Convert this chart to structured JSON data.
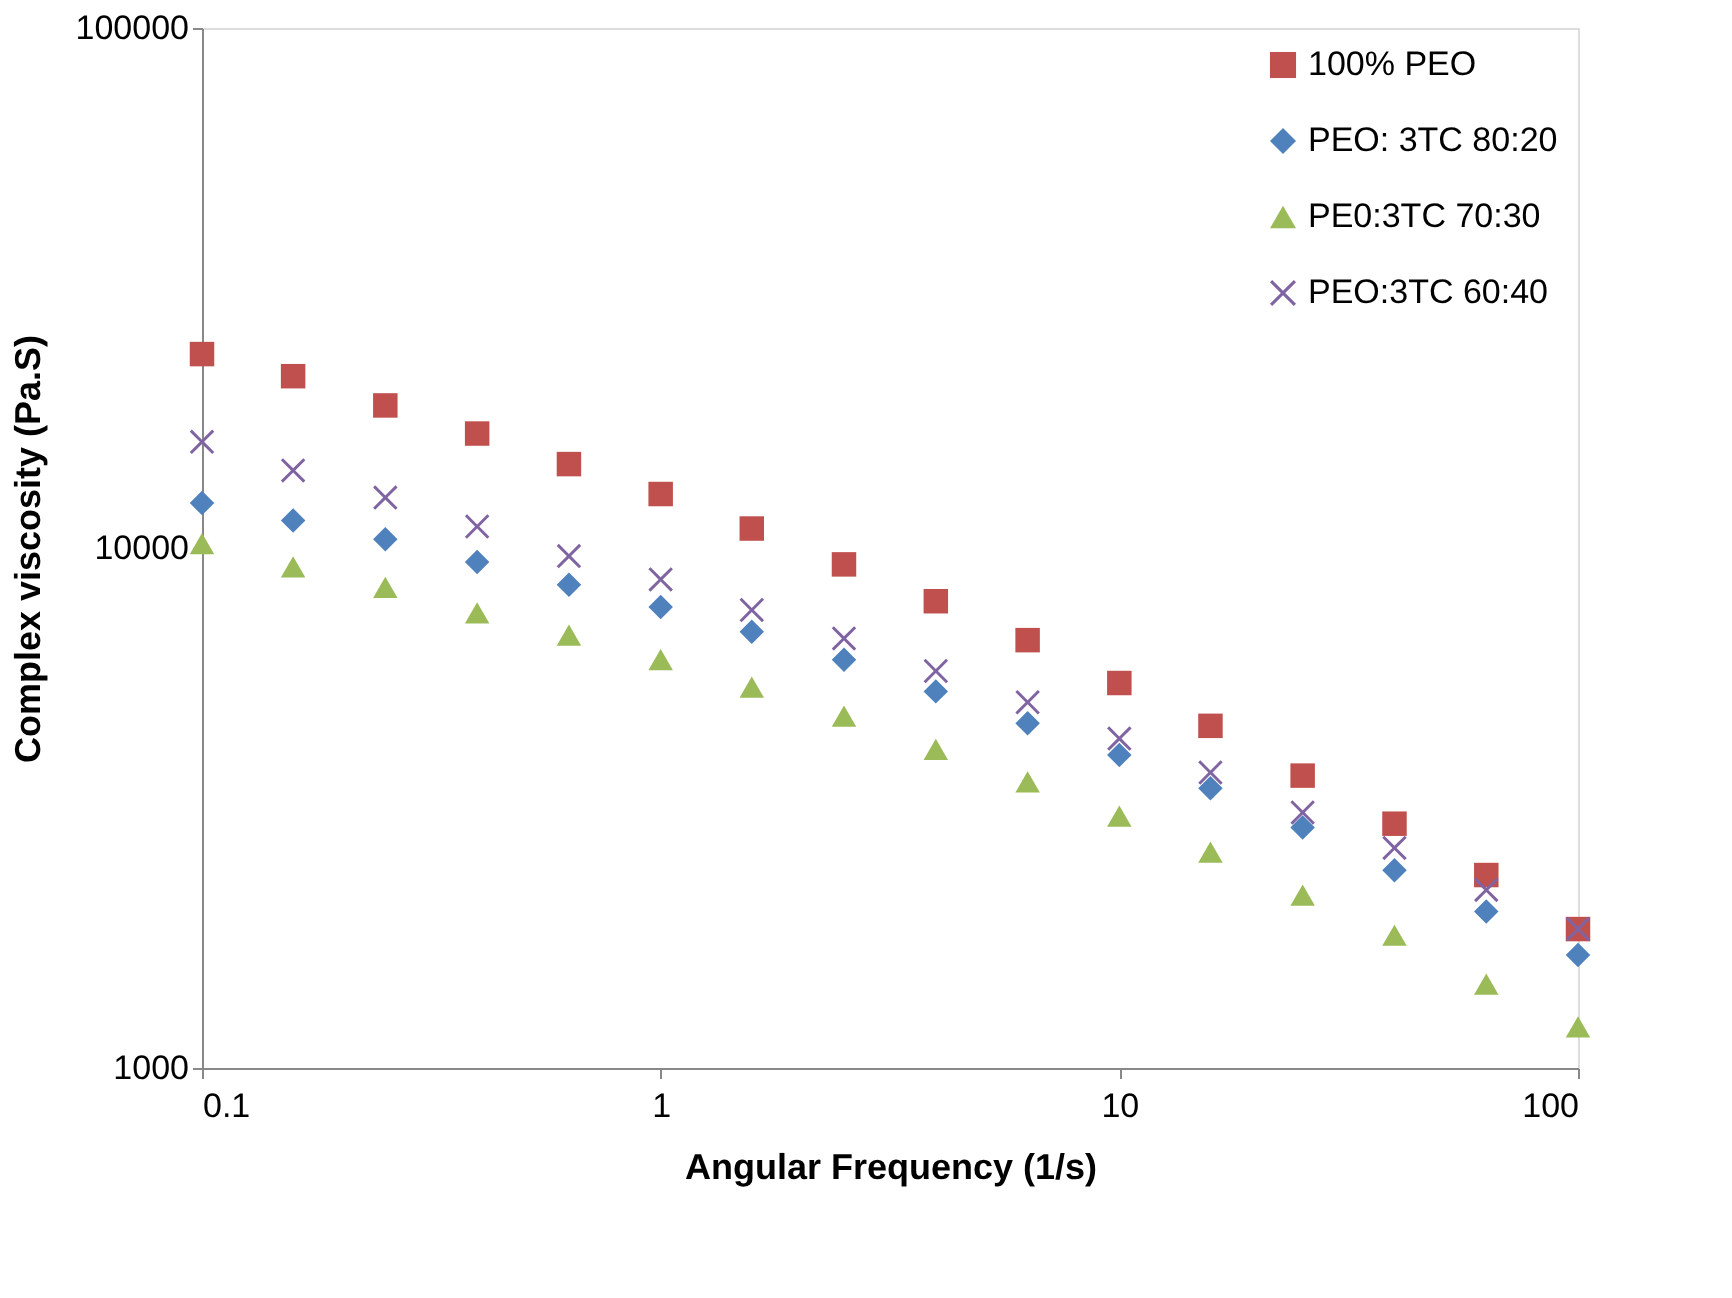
{
  "chart_data": {
    "type": "scatter",
    "xlabel": "Angular Frequency (1/s)",
    "ylabel": "Complex viscosity (Pa.S)",
    "x": [
      0.1,
      0.158,
      0.251,
      0.398,
      0.631,
      1,
      1.58,
      2.51,
      3.98,
      6.31,
      10,
      15.8,
      25.1,
      39.8,
      63.1,
      100
    ],
    "series": [
      {
        "name": "100% PEO",
        "color": "#c0504d",
        "marker": "square",
        "values": [
          23600,
          21400,
          18800,
          16600,
          14500,
          12700,
          10900,
          9300,
          7900,
          6650,
          5500,
          4550,
          3650,
          2950,
          2350,
          1850
        ]
      },
      {
        "name": "PEO: 3TC 80:20",
        "color": "#4f81bd",
        "marker": "diamond",
        "values": [
          12200,
          11300,
          10400,
          9400,
          8500,
          7700,
          6900,
          6100,
          5300,
          4600,
          4000,
          3450,
          2900,
          2400,
          2000,
          1650
        ]
      },
      {
        "name": "PE0:3TC 70:30",
        "color": "#9bbb59",
        "marker": "triangle",
        "values": [
          10200,
          9200,
          8400,
          7500,
          6800,
          6100,
          5400,
          4750,
          4100,
          3550,
          3050,
          2600,
          2150,
          1800,
          1450,
          1200
        ]
      },
      {
        "name": "PEO:3TC 60:40",
        "color": "#8064a2",
        "marker": "cross",
        "values": [
          16000,
          14100,
          12500,
          11000,
          9650,
          8700,
          7600,
          6700,
          5800,
          5050,
          4300,
          3700,
          3100,
          2650,
          2200,
          1850
        ]
      }
    ],
    "log": "xy",
    "xlim": [
      0.1,
      100
    ],
    "xticks": [
      0.1,
      1,
      10,
      100
    ],
    "ylim": [
      1000,
      100000
    ],
    "yticks": [
      1000,
      10000,
      100000
    ],
    "grid": false,
    "legend": "top right"
  }
}
